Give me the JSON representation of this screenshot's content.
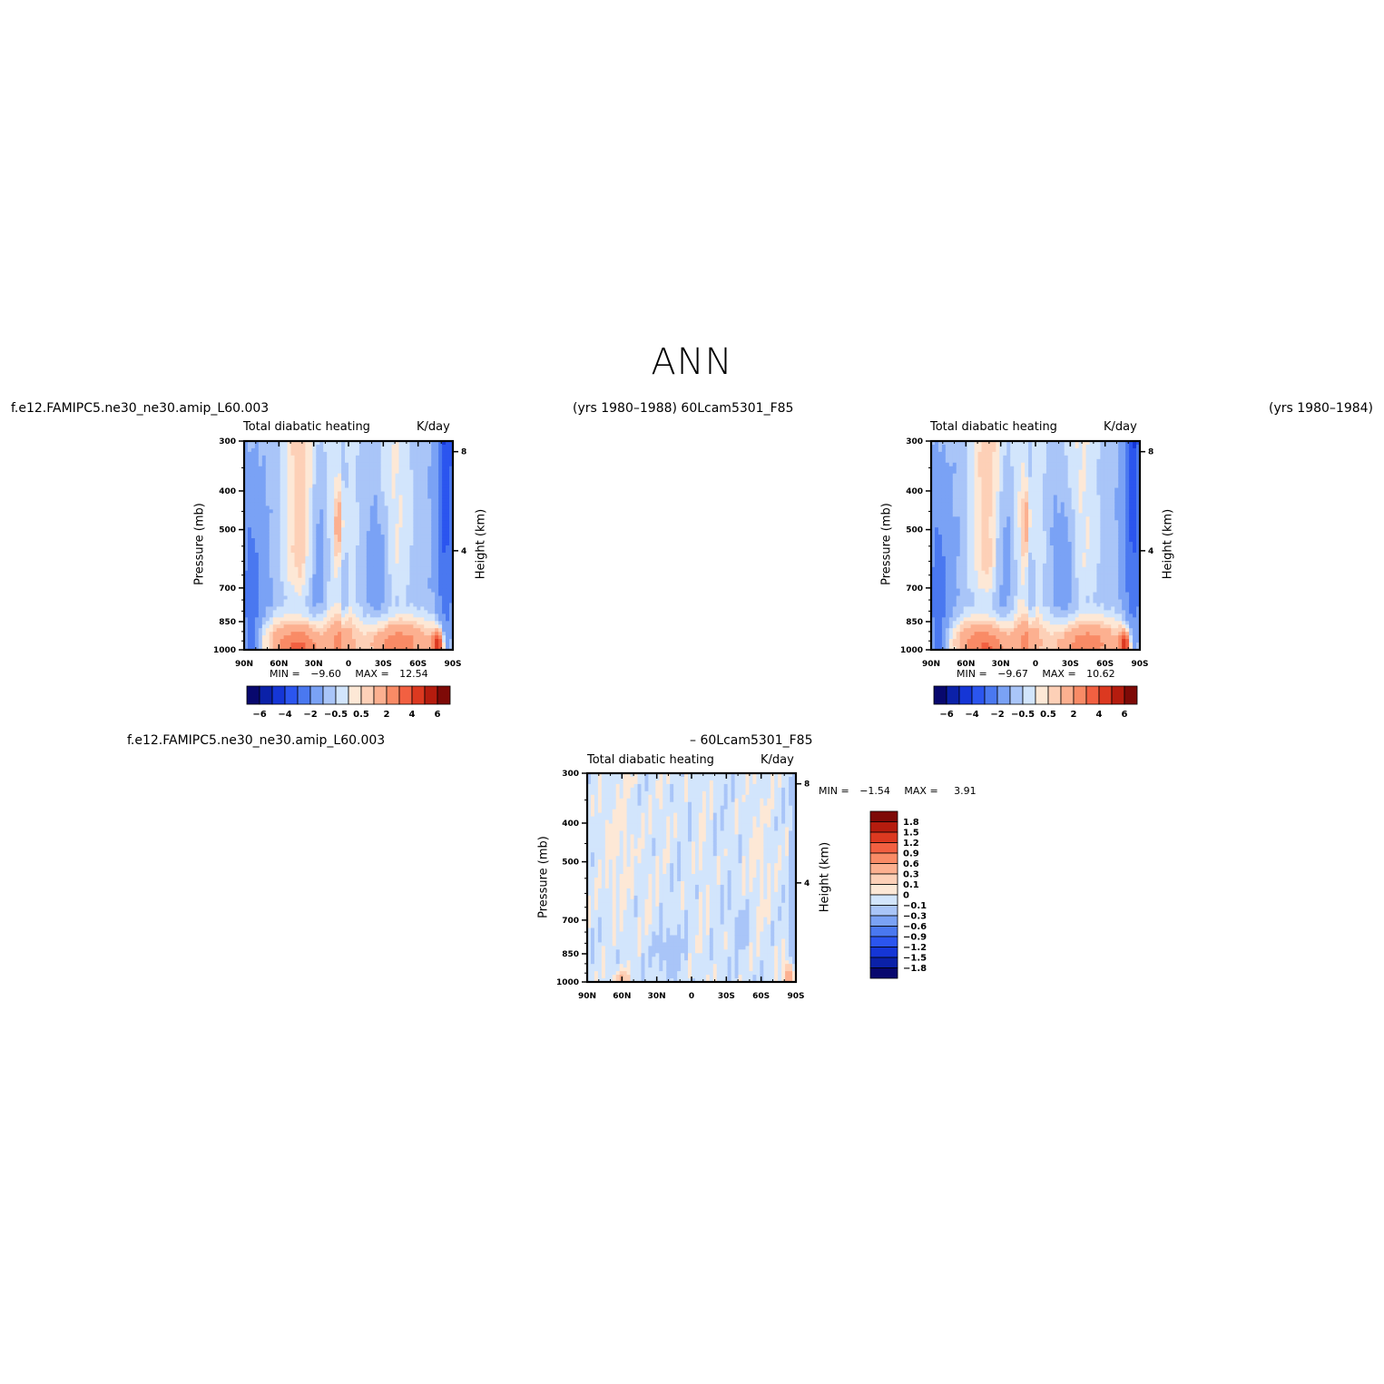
{
  "page": {
    "title": "ANN",
    "top_left_case": "f.e12.FAMIPC5.ne30_ne30.amip_L60.003",
    "top_mid_label": "(yrs 1980–1988)  60Lcam5301_F85",
    "top_right_years": "(yrs 1980–1984)",
    "bottom_left_case": "f.e12.FAMIPC5.ne30_ne30.amip_L60.003",
    "bottom_mid_label": "– 60Lcam5301_F85"
  },
  "colors": {
    "neg": [
      "#08086e",
      "#0b21a8",
      "#1536d6",
      "#2b55ef",
      "#4a78f0",
      "#7aa2f5",
      "#a9c5f8",
      "#d2e5fc"
    ],
    "pos": [
      "#fde8d6",
      "#fdd0b7",
      "#fcb090",
      "#f98b66",
      "#f26041",
      "#dc3920",
      "#b51c0e",
      "#7e0a07"
    ]
  },
  "chart_data": [
    {
      "id": "panel1",
      "type": "heatmap",
      "title": "Total diabatic heating",
      "units": "K/day",
      "ylabel": "Pressure (mb)",
      "y2label": "Height (km)",
      "x_ticks": [
        "90N",
        "60N",
        "30N",
        "0",
        "30S",
        "60S",
        "90S"
      ],
      "y_ticks": [
        "300",
        "400",
        "500",
        "700",
        "850",
        "1000"
      ],
      "y2_ticks": [
        "8",
        "4"
      ],
      "min_label": "MIN =",
      "min_value": "−9.60",
      "max_label": "MAX =",
      "max_value": "12.54",
      "colorbar_labels": [
        "−6",
        "−4",
        "−2",
        "−0.5",
        "0.5",
        "2",
        "4",
        "6"
      ]
    },
    {
      "id": "panel2",
      "type": "heatmap",
      "title": "Total diabatic heating",
      "units": "K/day",
      "ylabel": "Pressure (mb)",
      "y2label": "Height (km)",
      "x_ticks": [
        "90N",
        "60N",
        "30N",
        "0",
        "30S",
        "60S",
        "90S"
      ],
      "y_ticks": [
        "300",
        "400",
        "500",
        "700",
        "850",
        "1000"
      ],
      "y2_ticks": [
        "8",
        "4"
      ],
      "min_label": "MIN =",
      "min_value": "−9.67",
      "max_label": "MAX =",
      "max_value": "10.62",
      "colorbar_labels": [
        "−6",
        "−4",
        "−2",
        "−0.5",
        "0.5",
        "2",
        "4",
        "6"
      ]
    },
    {
      "id": "panel3",
      "type": "heatmap",
      "title": "Total diabatic heating",
      "units": "K/day",
      "ylabel": "Pressure (mb)",
      "y2label": "Height (km)",
      "x_ticks": [
        "90N",
        "60N",
        "30N",
        "0",
        "30S",
        "60S",
        "90S"
      ],
      "y_ticks": [
        "300",
        "400",
        "500",
        "700",
        "850",
        "1000"
      ],
      "y2_ticks": [
        "8",
        "4"
      ],
      "min_label": "MIN =",
      "min_value": "−1.54",
      "max_label": "MAX =",
      "max_value": "3.91",
      "colorbar_labels": [
        "1.8",
        "1.5",
        "1.2",
        "0.9",
        "0.6",
        "0.3",
        "0.1",
        "0",
        "−0.1",
        "−0.3",
        "−0.6",
        "−0.9",
        "−1.2",
        "−1.5",
        "−1.8"
      ]
    }
  ]
}
